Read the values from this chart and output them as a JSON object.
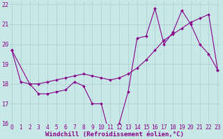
{
  "line1_x": [
    0,
    1,
    2,
    3,
    4,
    5,
    6,
    7,
    8,
    9,
    10,
    11,
    12,
    13,
    14,
    15,
    16,
    17,
    18,
    19,
    20,
    21,
    22,
    23
  ],
  "line1_y": [
    19.7,
    18.1,
    18.0,
    17.5,
    17.5,
    17.6,
    17.7,
    18.1,
    17.9,
    17.0,
    17.0,
    15.3,
    16.0,
    17.6,
    20.3,
    20.4,
    21.8,
    20.0,
    20.6,
    21.7,
    21.0,
    20.0,
    19.5,
    18.7
  ],
  "line2_x": [
    0,
    2,
    3,
    4,
    5,
    6,
    7,
    8,
    9,
    10,
    11,
    12,
    13,
    14,
    15,
    16,
    17,
    18,
    19,
    20,
    21,
    22,
    23
  ],
  "line2_y": [
    19.7,
    18.0,
    18.0,
    18.1,
    18.2,
    18.3,
    18.4,
    18.5,
    18.4,
    18.3,
    18.2,
    18.3,
    18.5,
    18.8,
    19.2,
    19.7,
    20.2,
    20.5,
    20.8,
    21.1,
    21.3,
    21.5,
    18.7
  ],
  "line_color": "#880088",
  "bg_color": "#c8e8e8",
  "grid_color": "#aacccc",
  "xlim": [
    0,
    23
  ],
  "ylim": [
    16,
    22
  ],
  "yticks": [
    16,
    17,
    18,
    19,
    20,
    21,
    22
  ],
  "xticks": [
    0,
    1,
    2,
    3,
    4,
    5,
    6,
    7,
    8,
    9,
    10,
    11,
    12,
    13,
    14,
    15,
    16,
    17,
    18,
    19,
    20,
    21,
    22,
    23
  ],
  "xlabel": "Windchill (Refroidissement éolien,°C)",
  "xlabel_fontsize": 6.5,
  "tick_fontsize": 5.8
}
